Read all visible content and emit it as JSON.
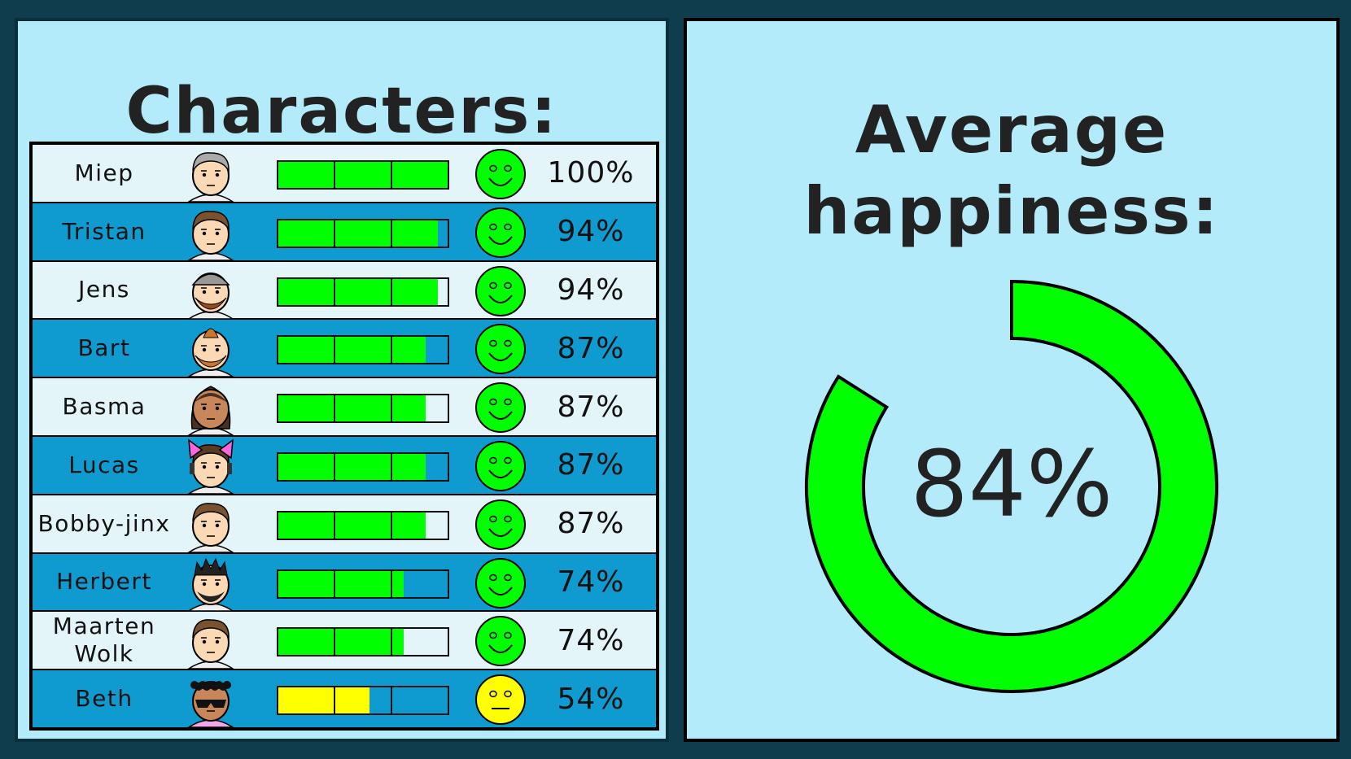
{
  "left_panel": {
    "title": "Characters:"
  },
  "right_panel": {
    "title": "Average happiness:",
    "value_label": "84%",
    "value": 84,
    "ring_color": "#00ff00"
  },
  "colors": {
    "green": "#00ff00",
    "yellow": "#ffff00",
    "row_light": "#e4f5fa",
    "row_dark": "#0f9bcf"
  },
  "characters": [
    {
      "name": "Miep",
      "happiness": 100,
      "label": "100%",
      "mood": "happy",
      "avatar": "gray-hair-avatar"
    },
    {
      "name": "Tristan",
      "happiness": 94,
      "label": "94%",
      "mood": "happy",
      "avatar": "brown-hair-avatar"
    },
    {
      "name": "Jens",
      "happiness": 94,
      "label": "94%",
      "mood": "happy",
      "avatar": "bearded-cap-avatar"
    },
    {
      "name": "Bart",
      "happiness": 87,
      "label": "87%",
      "mood": "happy",
      "avatar": "ginger-beard-avatar"
    },
    {
      "name": "Basma",
      "happiness": 87,
      "label": "87%",
      "mood": "happy",
      "avatar": "long-hair-avatar"
    },
    {
      "name": "Lucas",
      "happiness": 87,
      "label": "87%",
      "mood": "happy",
      "avatar": "cat-ears-headphones-avatar"
    },
    {
      "name": "Bobby-jinx",
      "happiness": 87,
      "label": "87%",
      "mood": "happy",
      "avatar": "brown-hair-avatar"
    },
    {
      "name": "Herbert",
      "happiness": 74,
      "label": "74%",
      "mood": "happy",
      "avatar": "spiky-beard-avatar"
    },
    {
      "name": "Maarten\nWolk",
      "happiness": 74,
      "label": "74%",
      "mood": "happy",
      "avatar": "brown-hair-avatar"
    },
    {
      "name": "Beth",
      "happiness": 54,
      "label": "54%",
      "mood": "neutral",
      "avatar": "curly-sunglasses-avatar"
    }
  ]
}
